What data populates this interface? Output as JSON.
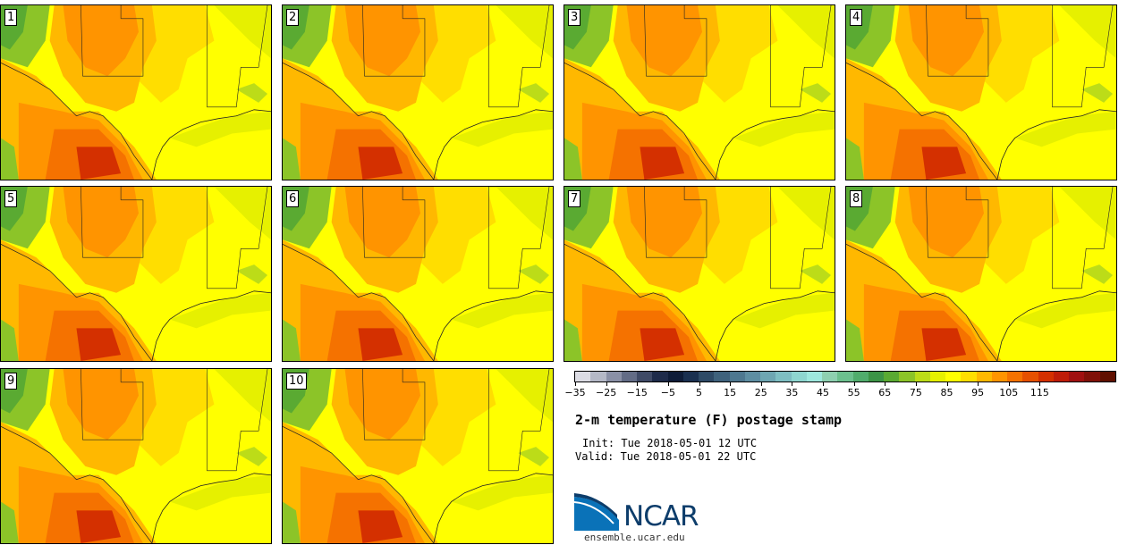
{
  "title": "2-m temperature (F) postage stamp",
  "init_time": "Init: Tue 2018-05-01 12 UTC",
  "valid_time": "Valid: Tue 2018-05-01 22 UTC",
  "logo_icon": "ncar-logo-icon",
  "logo_text": "NCAR",
  "url": "ensemble.ucar.edu",
  "members": [
    "1",
    "2",
    "3",
    "4",
    "5",
    "6",
    "7",
    "8",
    "9",
    "10"
  ],
  "colorbar": {
    "colors": [
      "#dcdce4",
      "#b4b8c6",
      "#8a90a6",
      "#636c86",
      "#3f4a66",
      "#1e2b4a",
      "#0e1c38",
      "#1a3050",
      "#2e4a66",
      "#3f627c",
      "#4e7890",
      "#5e8ea2",
      "#6ea6b2",
      "#7ebec2",
      "#8ed6d0",
      "#9ee8de",
      "#8ed0b0",
      "#6cc08e",
      "#50ac6c",
      "#3c9446",
      "#5aaa32",
      "#8cc428",
      "#bcdc18",
      "#e6f000",
      "#ffff00",
      "#ffde00",
      "#ffb800",
      "#ff9400",
      "#f57200",
      "#e65000",
      "#d43000",
      "#be1c08",
      "#a01010",
      "#801008",
      "#601000"
    ],
    "ticks": [
      "−35",
      "−25",
      "−15",
      "−5",
      "5",
      "15",
      "25",
      "35",
      "45",
      "55",
      "65",
      "75",
      "85",
      "95",
      "105",
      "115"
    ]
  }
}
